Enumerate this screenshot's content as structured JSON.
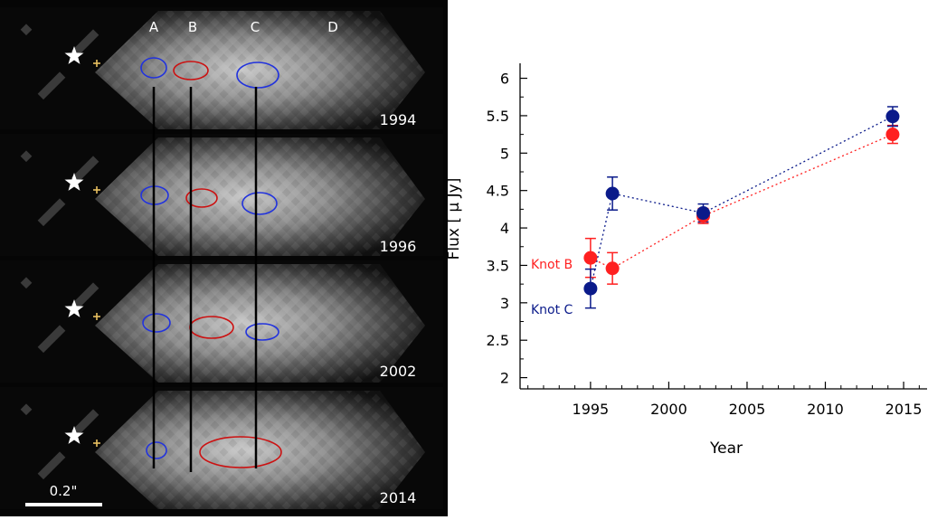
{
  "image_panel": {
    "knot_labels": [
      "A",
      "B",
      "C",
      "D"
    ],
    "epochs": [
      "1994",
      "1996",
      "2002",
      "2014"
    ],
    "scale_bar_label": "0.2\"",
    "colors": {
      "knot_b": "#cc1111",
      "knot_c_a": "#2233dd",
      "star": "#ffffff",
      "plus": "#e8c060"
    }
  },
  "chart_data": {
    "type": "scatter",
    "xlabel": "Year",
    "ylabel": "Flux [ μ Jy]",
    "xlim": [
      1990.5,
      2016.5
    ],
    "ylim": [
      1.85,
      6.2
    ],
    "x_ticks": [
      1995,
      2000,
      2005,
      2010,
      2015
    ],
    "y_ticks": [
      2,
      2.5,
      3,
      3.5,
      4,
      4.5,
      5,
      5.5,
      6
    ],
    "x_tick_labels": [
      "1995",
      "2000",
      "2005",
      "2010",
      "2015"
    ],
    "y_tick_labels": [
      "2",
      "2.5",
      "3",
      "3.5",
      "4",
      "4.5",
      "5",
      "5.5",
      "6"
    ],
    "grid": false,
    "series": [
      {
        "name": "Knot B",
        "color": "#ff2020",
        "x": [
          1995.0,
          1996.4,
          2002.2,
          2014.3
        ],
        "y": [
          3.6,
          3.46,
          4.16,
          5.25
        ],
        "yerr": [
          0.26,
          0.21,
          0.1,
          0.12
        ]
      },
      {
        "name": "Knot C",
        "color": "#0a1a8a",
        "x": [
          1995.0,
          1996.4,
          2002.2,
          2014.3
        ],
        "y": [
          3.19,
          4.46,
          4.2,
          5.49
        ],
        "yerr": [
          0.26,
          0.22,
          0.12,
          0.13
        ]
      }
    ]
  }
}
